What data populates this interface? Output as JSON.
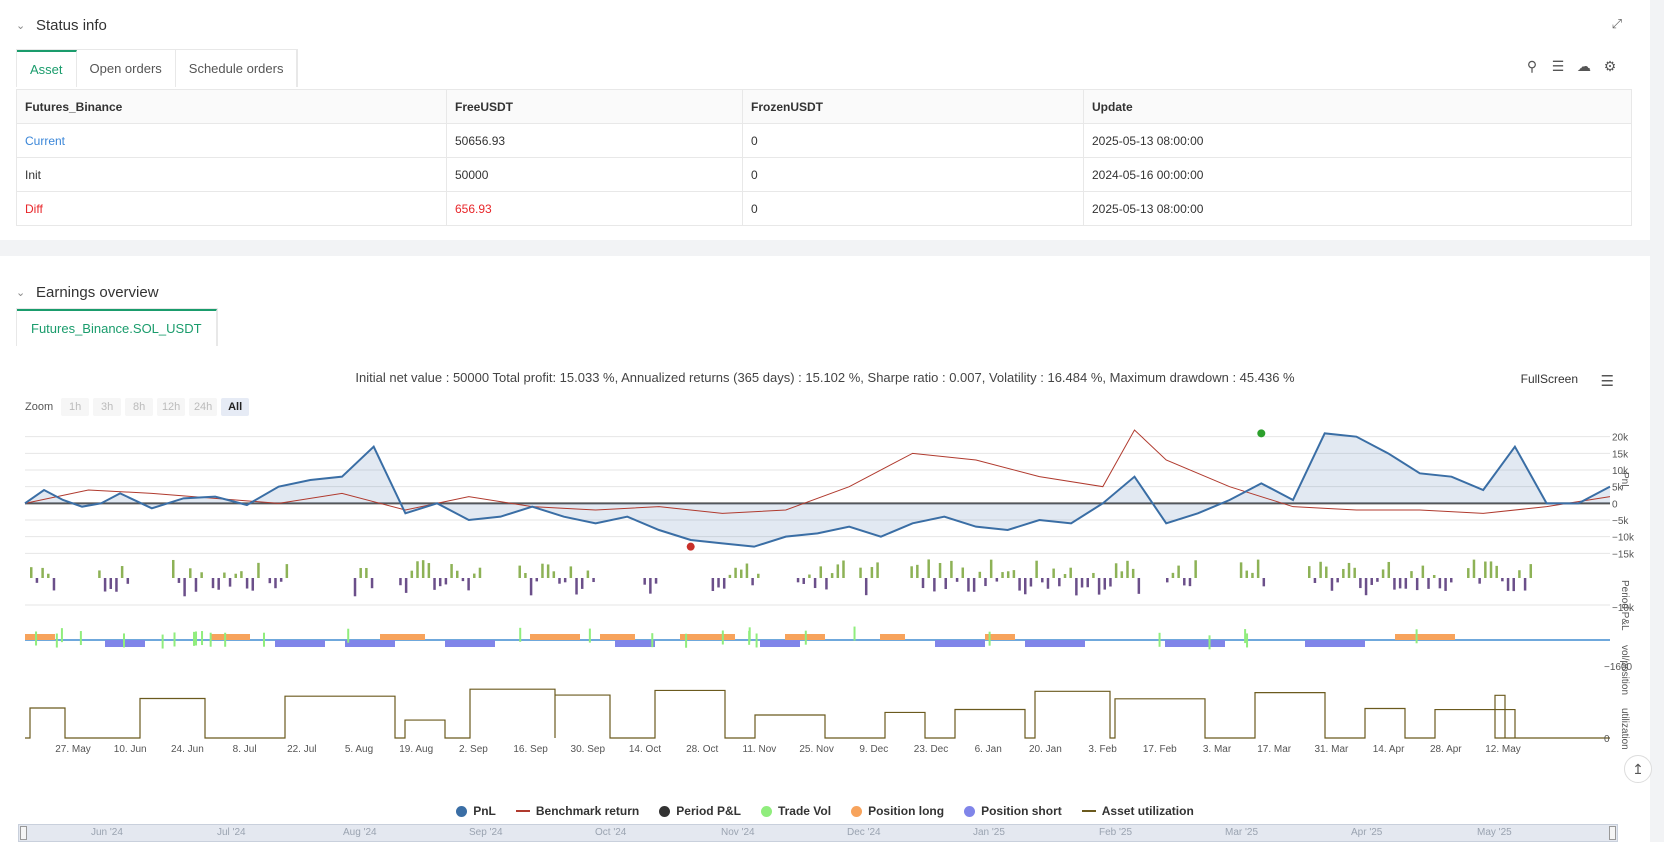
{
  "status": {
    "title": "Status info",
    "tabs": [
      "Asset",
      "Open orders",
      "Schedule orders"
    ],
    "columns": [
      "Futures_Binance",
      "FreeUSDT",
      "FrozenUSDT",
      "Update"
    ],
    "rows": [
      {
        "label": "Current",
        "free": "50656.93",
        "frozen": "0",
        "update": "2025-05-13 08:00:00"
      },
      {
        "label": "Init",
        "free": "50000",
        "frozen": "0",
        "update": "2024-05-16 00:00:00"
      },
      {
        "label": "Diff",
        "free": "656.93",
        "frozen": "0",
        "update": "2025-05-13 08:00:00"
      }
    ],
    "icons": [
      "search-icon",
      "list-icon",
      "cloud-download-icon",
      "settings-icon",
      "collapse-icon"
    ]
  },
  "earnings": {
    "title": "Earnings overview",
    "tab": "Futures_Binance.SOL_USDT",
    "summary": "Initial net value : 50000 Total profit: 15.033 %, Annualized returns (365 days) : 15.102 %, Sharpe ratio : 0.007, Volatility : 16.484 %, Maximum drawdown : 45.436 %",
    "fullscreen": "FullScreen",
    "zoom_label": "Zoom",
    "zoom_buttons": [
      "1h",
      "3h",
      "8h",
      "12h",
      "24h",
      "All"
    ],
    "legend": [
      "PnL",
      "Benchmark return",
      "Period P&L",
      "Trade Vol",
      "Position long",
      "Position short",
      "Asset utilization"
    ],
    "navigator_labels": [
      "Jun '24",
      "Jul '24",
      "Aug '24",
      "Sep '24",
      "Oct '24",
      "Nov '24",
      "Dec '24",
      "Jan '25",
      "Feb '25",
      "Mar '25",
      "Apr '25",
      "May '25"
    ]
  },
  "chart_data": {
    "type": "line",
    "x_ticks": [
      "27. May",
      "10. Jun",
      "24. Jun",
      "8. Jul",
      "22. Jul",
      "5. Aug",
      "19. Aug",
      "2. Sep",
      "16. Sep",
      "30. Sep",
      "14. Oct",
      "28. Oct",
      "11. Nov",
      "25. Nov",
      "9. Dec",
      "23. Dec",
      "6. Jan",
      "20. Jan",
      "3. Feb",
      "17. Feb",
      "3. Mar",
      "17. Mar",
      "31. Mar",
      "14. Apr",
      "28. Apr",
      "12. May"
    ],
    "pnl_axis": {
      "label": "PnL",
      "ticks": [
        "20k",
        "15k",
        "10k",
        "5k",
        "0",
        "−5k",
        "−10k",
        "−15k"
      ],
      "ylim": [
        -17000,
        22000
      ]
    },
    "period_axis": {
      "label": "Period P&L",
      "ticks": [
        "−10k"
      ]
    },
    "position_axis": {
      "label": "vol/position",
      "ticks": [
        "−1600"
      ]
    },
    "util_axis": {
      "label": "utilization",
      "ticks": [
        "0"
      ]
    },
    "series": [
      {
        "name": "PnL",
        "color": "#3a6ea5",
        "x": [
          0,
          3,
          6,
          9,
          12,
          15,
          20,
          25,
          30,
          35,
          40,
          45,
          50,
          55,
          60,
          65,
          70,
          75,
          80,
          85,
          90,
          95,
          100,
          105,
          110,
          115,
          120,
          125,
          130,
          135,
          140,
          145,
          150,
          155,
          160,
          165,
          170,
          175,
          180,
          185,
          190,
          195,
          200,
          205,
          210,
          215,
          220,
          225,
          230,
          235,
          240,
          245,
          250
        ],
        "values": [
          0,
          4000,
          1000,
          -1000,
          0,
          3000,
          -1500,
          1500,
          2000,
          -500,
          5000,
          7000,
          8000,
          17000,
          -3000,
          0,
          -5000,
          -4000,
          -1000,
          -4000,
          -6000,
          -4000,
          -8000,
          -11000,
          -12000,
          -13000,
          -10000,
          -9000,
          -7000,
          -10000,
          -6000,
          -4000,
          -7000,
          -8000,
          -5000,
          -6000,
          0,
          8000,
          -6000,
          -3000,
          1000,
          6000,
          1000,
          21000,
          20000,
          15000,
          9000,
          8000,
          4000,
          17000,
          0,
          0,
          5000
        ]
      },
      {
        "name": "Benchmark return",
        "color": "#b03a2e",
        "x": [
          0,
          10,
          20,
          30,
          40,
          50,
          60,
          70,
          80,
          90,
          100,
          110,
          120,
          130,
          140,
          150,
          160,
          170,
          175,
          180,
          190,
          200,
          210,
          220,
          230,
          240,
          250
        ],
        "values": [
          0,
          4000,
          3000,
          1500,
          0,
          3000,
          -2000,
          2000,
          -1000,
          -2000,
          -1000,
          -3000,
          -2000,
          5000,
          15000,
          13000,
          8000,
          5000,
          22000,
          13000,
          5000,
          -1000,
          -2000,
          -2000,
          -3000,
          -1000,
          2000
        ]
      }
    ]
  },
  "colors": {
    "accent": "#1a9c6c",
    "pnl": "#3a6ea5",
    "benchmark": "#b03a2e",
    "period_pos": "#8db256",
    "period_neg": "#6b4f8a",
    "trade_vol": "#90ed7d",
    "long": "#f7a35c",
    "short": "#8085e9",
    "util": "#6b5a1e"
  }
}
